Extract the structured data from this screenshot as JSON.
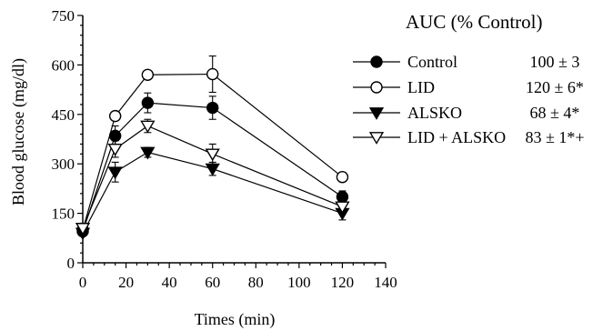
{
  "chart_data": {
    "type": "line",
    "xlabel": "Times (min)",
    "ylabel": "Blood glucose (mg/dl)",
    "xlim": [
      0,
      140
    ],
    "ylim": [
      0,
      750
    ],
    "x_ticks": [
      "0",
      "20",
      "40",
      "60",
      "80",
      "100",
      "120",
      "140"
    ],
    "y_ticks": [
      "0",
      "150",
      "300",
      "450",
      "600",
      "750"
    ],
    "grid": false,
    "legend_title": "AUC (% Control)",
    "legend_position": "top-right",
    "x": [
      0,
      15,
      30,
      60,
      120
    ],
    "series": [
      {
        "name": "Control",
        "auc": "100 ± 3",
        "marker": "filled-circle",
        "values": [
          95,
          385,
          485,
          470,
          200
        ],
        "errors": [
          8,
          30,
          30,
          35,
          18
        ]
      },
      {
        "name": "LID",
        "auc": "120 ± 6*",
        "marker": "open-circle",
        "values": [
          100,
          445,
          570,
          572,
          260
        ],
        "errors": [
          8,
          12,
          10,
          55,
          12
        ]
      },
      {
        "name": "ALSKO",
        "auc": "68 ± 4*",
        "marker": "filled-triangle-down",
        "values": [
          90,
          275,
          335,
          285,
          150
        ],
        "errors": [
          8,
          30,
          15,
          20,
          20
        ]
      },
      {
        "name": "LID + ALSKO",
        "auc": "83 ± 1*+",
        "marker": "open-triangle-down",
        "values": [
          105,
          345,
          415,
          330,
          170
        ],
        "errors": [
          8,
          25,
          20,
          30,
          15
        ]
      }
    ]
  }
}
